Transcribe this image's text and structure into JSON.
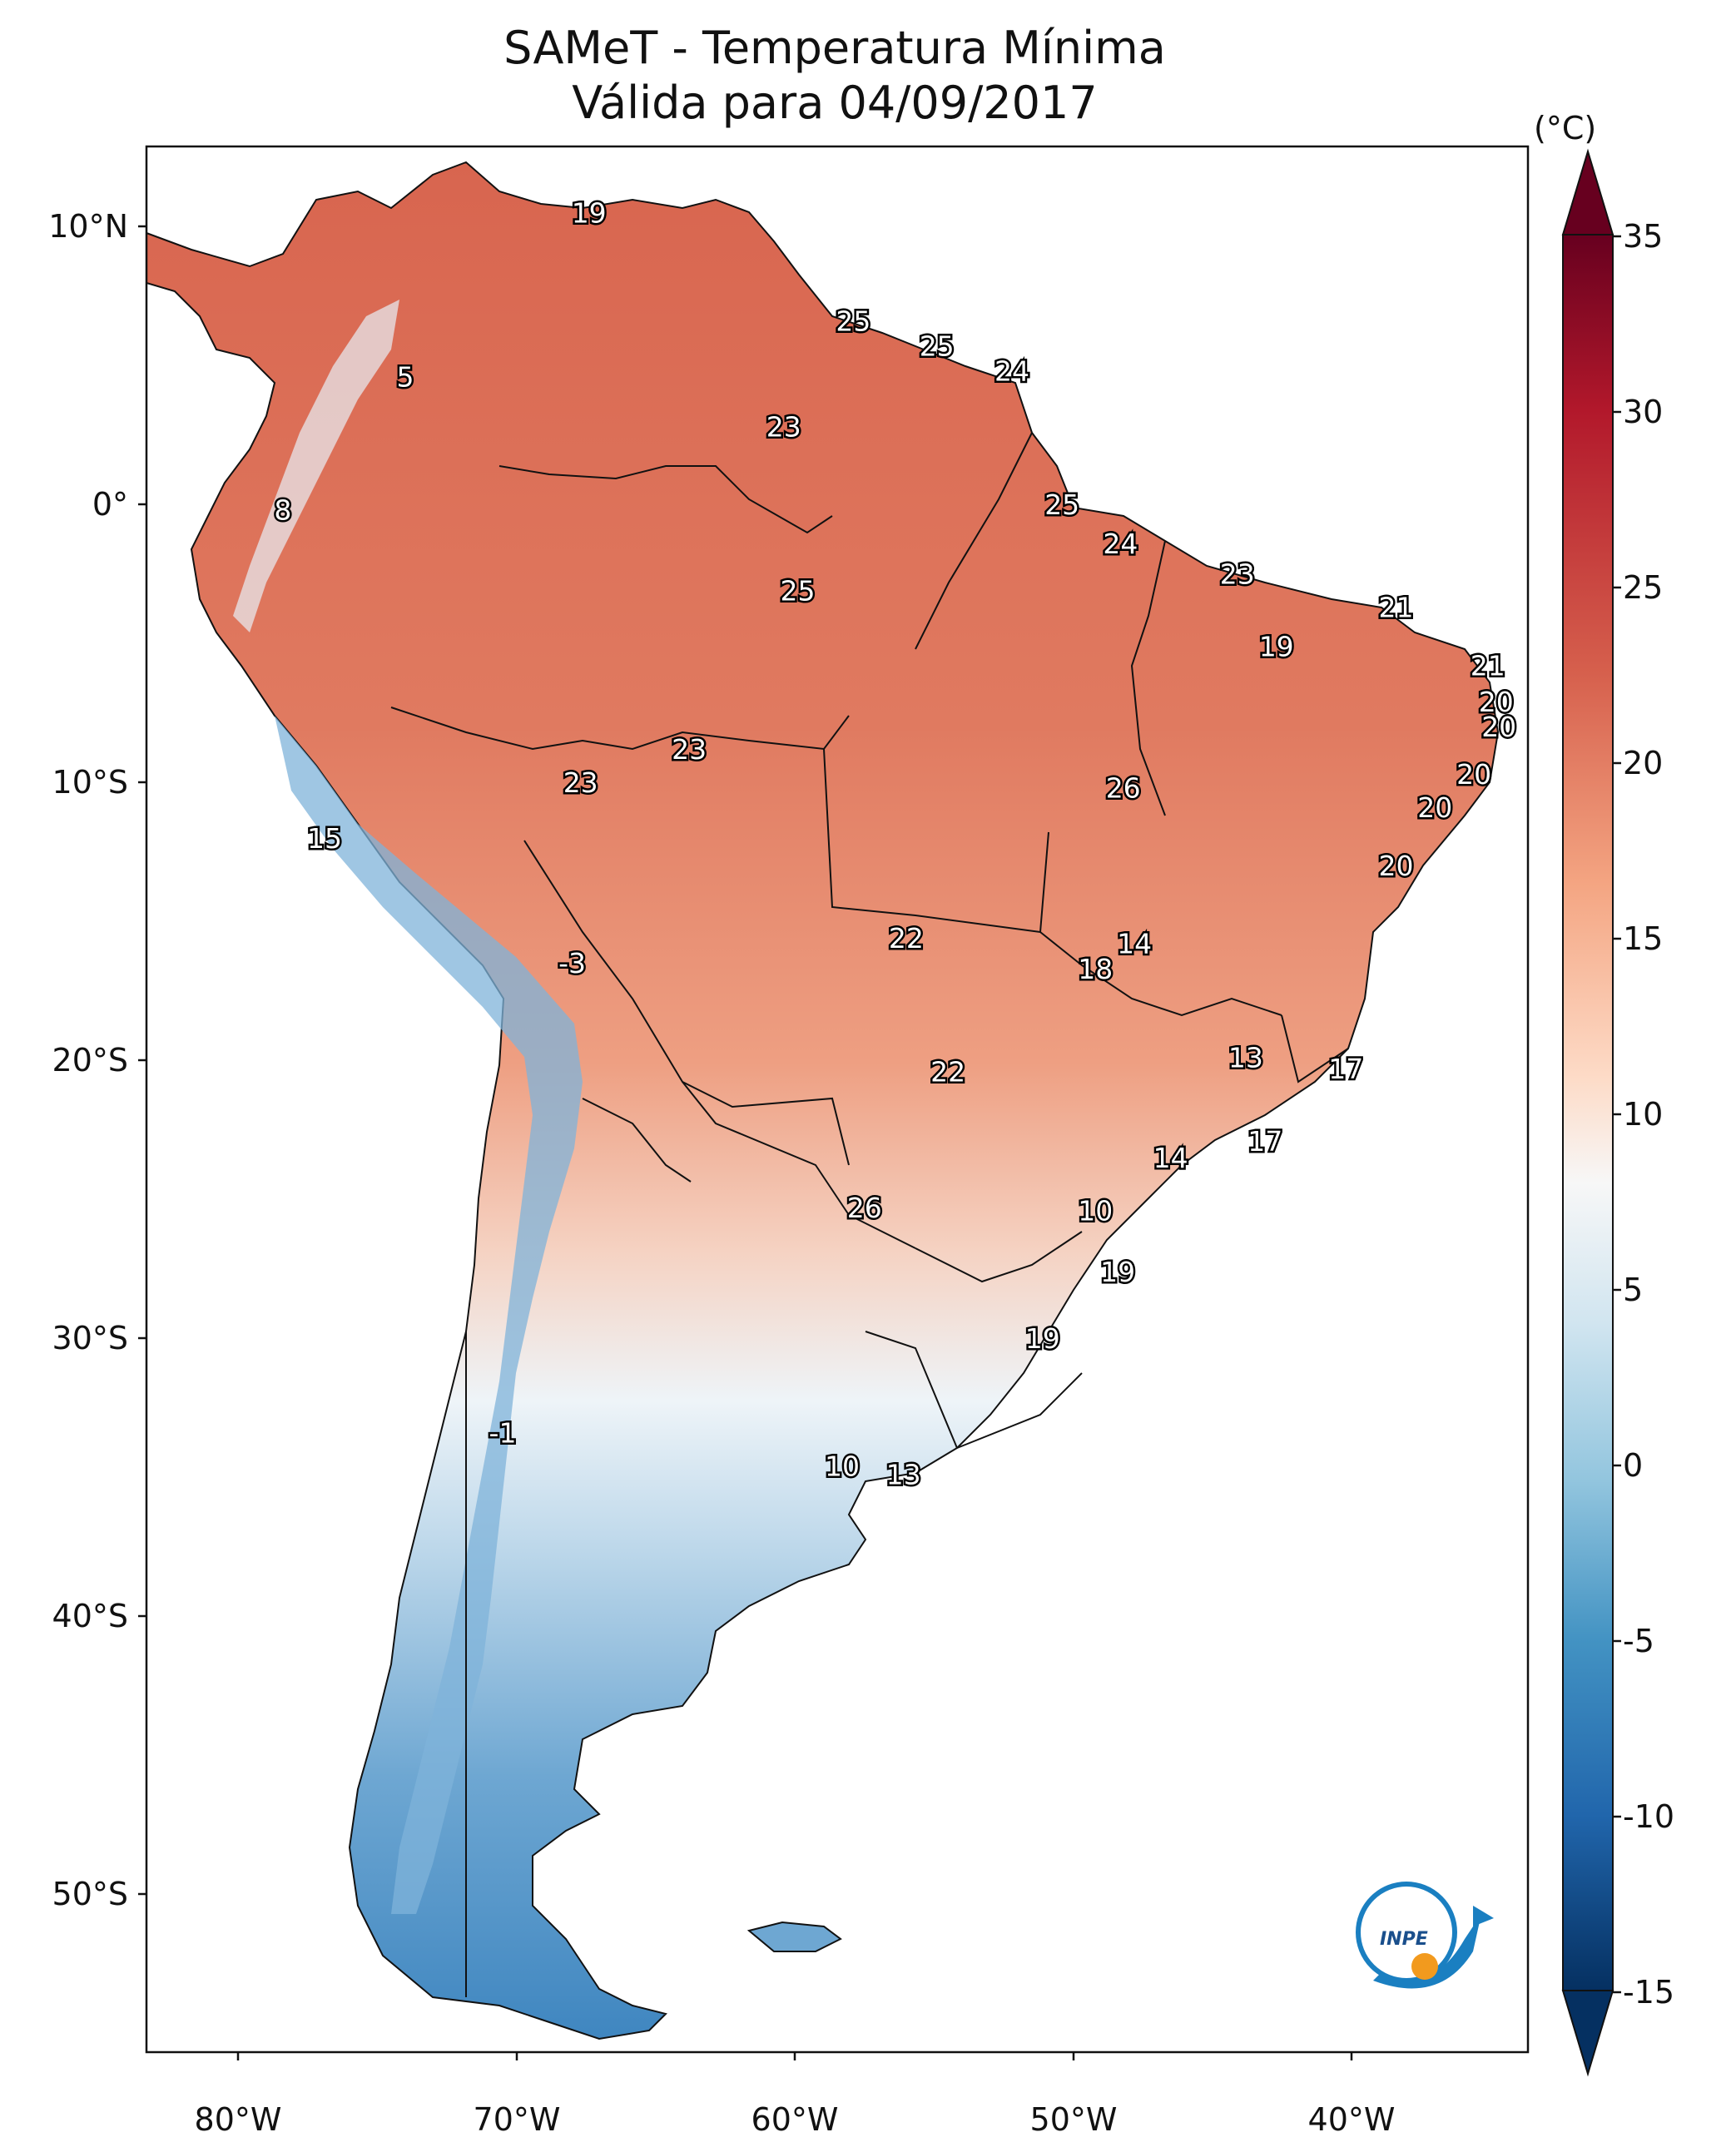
{
  "title": "SAMeT - Temperatura Mínima",
  "subtitle": "Válida para 04/09/2017",
  "colorbar": {
    "unit": "(°C)",
    "ticks": [
      "35",
      "30",
      "25",
      "20",
      "15",
      "10",
      "5",
      "0",
      "-5",
      "-10",
      "-15"
    ],
    "colors": [
      "#67001f",
      "#b2182b",
      "#d6604d",
      "#f4a582",
      "#fddbc7",
      "#f7f7f7",
      "#d1e5f0",
      "#92c5de",
      "#4393c3",
      "#2166ac",
      "#053061"
    ]
  },
  "axes": {
    "lat_ticks": [
      "10°N",
      "0°",
      "10°S",
      "20°S",
      "30°S",
      "40°S",
      "50°S"
    ],
    "lon_ticks": [
      "80°W",
      "70°W",
      "60°W",
      "50°W",
      "40°W"
    ]
  },
  "logo": "INPE",
  "stations": [
    {
      "label": "19",
      "lon": -67.5,
      "lat": 10.5
    },
    {
      "label": "5",
      "lon": -74.1,
      "lat": 4.6
    },
    {
      "label": "25",
      "lon": -58.0,
      "lat": 6.6
    },
    {
      "label": "25",
      "lon": -55.0,
      "lat": 5.7
    },
    {
      "label": "24",
      "lon": -52.3,
      "lat": 4.8
    },
    {
      "label": "23",
      "lon": -60.5,
      "lat": 2.8
    },
    {
      "label": "8",
      "lon": -78.5,
      "lat": -0.2
    },
    {
      "label": "25",
      "lon": -50.5,
      "lat": 0.0
    },
    {
      "label": "24",
      "lon": -48.4,
      "lat": -1.4
    },
    {
      "label": "25",
      "lon": -60.0,
      "lat": -3.1
    },
    {
      "label": "23",
      "lon": -44.2,
      "lat": -2.5
    },
    {
      "label": "21",
      "lon": -38.5,
      "lat": -3.7
    },
    {
      "label": "19",
      "lon": -42.8,
      "lat": -5.1
    },
    {
      "label": "21",
      "lon": -35.2,
      "lat": -5.8
    },
    {
      "label": "20",
      "lon": -34.9,
      "lat": -7.1
    },
    {
      "label": "20",
      "lon": -34.8,
      "lat": -8.0
    },
    {
      "label": "23",
      "lon": -63.9,
      "lat": -8.8
    },
    {
      "label": "23",
      "lon": -67.8,
      "lat": -10.0
    },
    {
      "label": "20",
      "lon": -35.7,
      "lat": -9.7
    },
    {
      "label": "26",
      "lon": -48.3,
      "lat": -10.2
    },
    {
      "label": "20",
      "lon": -37.1,
      "lat": -10.9
    },
    {
      "label": "15",
      "lon": -77.0,
      "lat": -12.0
    },
    {
      "label": "20",
      "lon": -38.5,
      "lat": -13.0
    },
    {
      "label": "22",
      "lon": -56.1,
      "lat": -15.6
    },
    {
      "label": "14",
      "lon": -47.9,
      "lat": -15.8
    },
    {
      "label": "18",
      "lon": -49.3,
      "lat": -16.7
    },
    {
      "label": "-3",
      "lon": -68.1,
      "lat": -16.5
    },
    {
      "label": "13",
      "lon": -43.9,
      "lat": -19.9
    },
    {
      "label": "17",
      "lon": -40.3,
      "lat": -20.3
    },
    {
      "label": "22",
      "lon": -54.6,
      "lat": -20.4
    },
    {
      "label": "17",
      "lon": -43.2,
      "lat": -22.9
    },
    {
      "label": "14",
      "lon": -46.6,
      "lat": -23.5
    },
    {
      "label": "10",
      "lon": -49.3,
      "lat": -25.4
    },
    {
      "label": "26",
      "lon": -57.6,
      "lat": -25.3
    },
    {
      "label": "19",
      "lon": -48.5,
      "lat": -27.6
    },
    {
      "label": "19",
      "lon": -51.2,
      "lat": -30.0
    },
    {
      "label": "-1",
      "lon": -70.6,
      "lat": -33.4
    },
    {
      "label": "10",
      "lon": -58.4,
      "lat": -34.6
    },
    {
      "label": "13",
      "lon": -56.2,
      "lat": -34.9
    }
  ]
}
